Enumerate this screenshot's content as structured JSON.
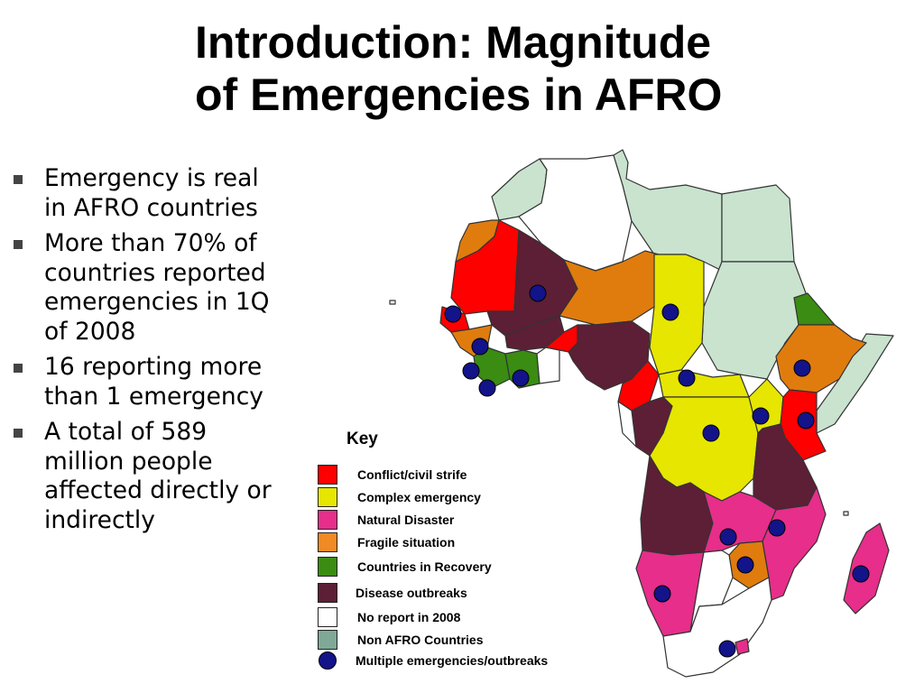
{
  "title": {
    "line1": "Introduction: Magnitude",
    "line2": "of Emergencies in AFRO"
  },
  "bullets": [
    {
      "text": "Emergency is real in AFRO countries"
    },
    {
      "text": "More than 70% of countries reported emergencies in 1Q of 2008"
    },
    {
      "text": "16 reporting more than 1 emergency"
    },
    {
      "text": "A total of 589 million people affected directly or indirectly"
    }
  ],
  "key": {
    "title": "Key",
    "items": [
      {
        "label": "Conflict/civil strife",
        "color": "#ff0000"
      },
      {
        "label": "Complex emergency",
        "color": "#e6e600"
      },
      {
        "label": "Natural Disaster",
        "color": "#e62e8a"
      },
      {
        "label": "Fragile situation",
        "color": "#f08a24"
      },
      {
        "label": "Countries in Recovery",
        "color": "#3a8c12"
      },
      {
        "label": "Disease outbreaks",
        "color": "#5c1f36"
      },
      {
        "label": "No report in 2008",
        "color": "#ffffff"
      },
      {
        "label": "Non AFRO Countries",
        "color": "#7fa897"
      },
      {
        "label": "Multiple emergencies/outbreaks",
        "color": "#13138a",
        "icon": "dot-marker"
      }
    ]
  },
  "map_colors": {
    "non_afro": "#c9e3cf",
    "conflict": "#ff0000",
    "complex": "#e6e600",
    "natural": "#e62e8a",
    "fragile": "#e07c0e",
    "recovery": "#3a8c12",
    "disease": "#5c1f36",
    "no_report": "#ffffff",
    "marker": "#13138a"
  }
}
